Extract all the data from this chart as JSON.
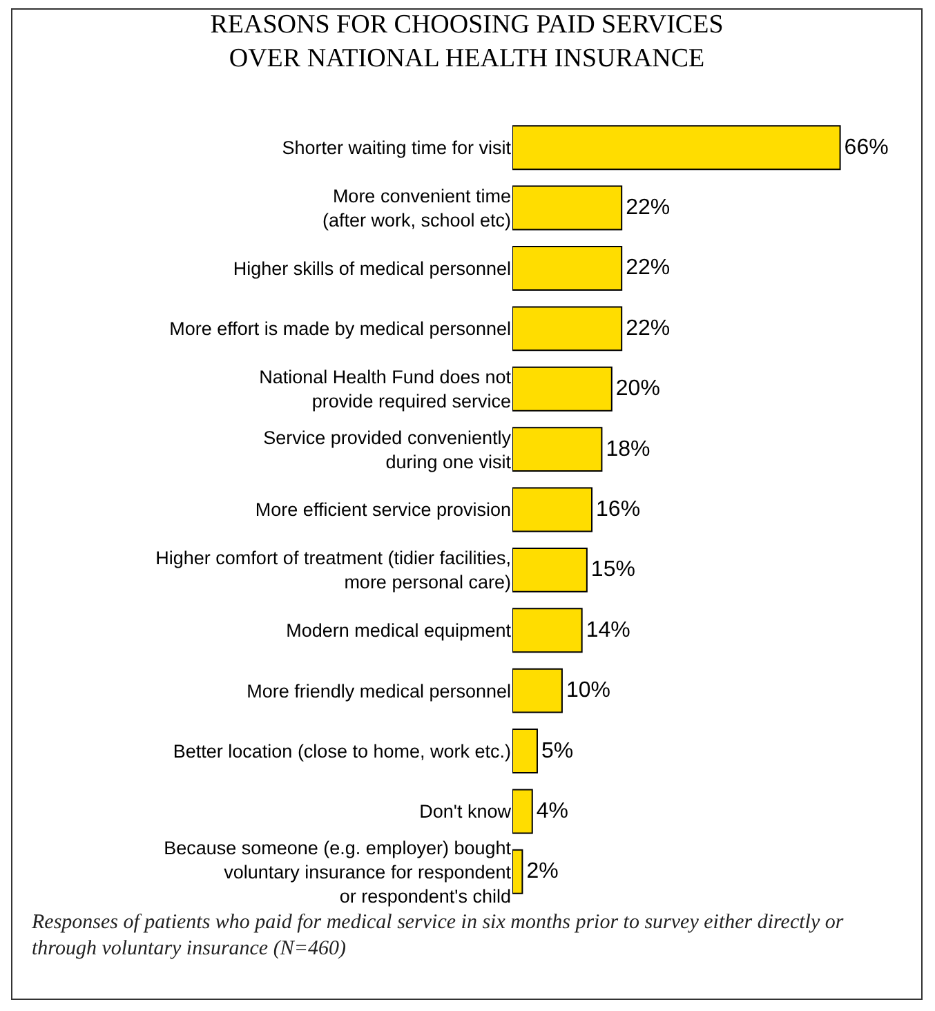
{
  "chart_data": {
    "type": "bar",
    "orientation": "horizontal",
    "title": "REASONS FOR CHOOSING PAID SERVICES\nOVER NATIONAL HEALTH INSURANCE",
    "categories": [
      "Shorter waiting time for visit",
      "More convenient time\n(after work, school etc)",
      "Higher skills of medical personnel",
      "More effort is made by medical personnel",
      "National Health Fund does not\nprovide required service",
      "Service provided conveniently\nduring one visit",
      "More efficient service provision",
      "Higher comfort of treatment (tidier facilities,\nmore personal care)",
      "Modern medical equipment",
      "More friendly medical personnel",
      "Better location (close to home, work etc.)",
      "Don't know",
      "Because someone (e.g. employer) bought\nvoluntary insurance for respondent\nor respondent's child"
    ],
    "values": [
      66,
      22,
      22,
      22,
      20,
      18,
      16,
      15,
      14,
      10,
      5,
      4,
      2
    ],
    "value_labels": [
      "66%",
      "22%",
      "22%",
      "22%",
      "20%",
      "18%",
      "16%",
      "15%",
      "14%",
      "10%",
      "5%",
      "4%",
      "2%"
    ],
    "color": "#ffdd00",
    "grid": false,
    "legend": false,
    "annotations": [
      "Responses of patients who paid for medical service in six months prior to survey either directly or through voluntary insurance (N=460)"
    ]
  }
}
